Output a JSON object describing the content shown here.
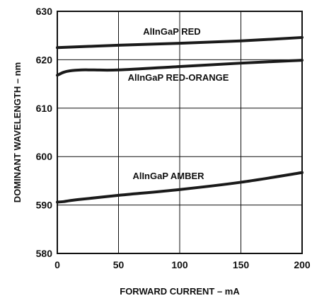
{
  "chart_data": {
    "type": "line",
    "title": "",
    "xlabel": "FORWARD CURRENT – mA",
    "ylabel": "DOMINANT WAVELENGTH – nm",
    "xlim": [
      0,
      200
    ],
    "ylim": [
      580,
      630
    ],
    "x_ticks": [
      0,
      50,
      100,
      150,
      200
    ],
    "y_ticks": [
      580,
      590,
      600,
      610,
      620,
      630
    ],
    "x_tick_labels": [
      "0",
      "50",
      "100",
      "150",
      "200"
    ],
    "y_tick_labels": [
      "580",
      "590",
      "600",
      "610",
      "620",
      "630"
    ],
    "grid": true,
    "legend": "none (series labeled inline)",
    "series": [
      {
        "name": "AlInGaP RED",
        "x": [
          0,
          50,
          100,
          150,
          200
        ],
        "y": [
          622.5,
          623.0,
          623.4,
          623.9,
          624.6
        ]
      },
      {
        "name": "AlInGaP RED-ORANGE",
        "x": [
          0,
          5,
          10,
          20,
          30,
          50,
          100,
          150,
          200
        ],
        "y": [
          616.8,
          617.4,
          617.7,
          617.9,
          617.9,
          617.9,
          618.6,
          619.3,
          619.9
        ]
      },
      {
        "name": "AlInGaP AMBER",
        "x": [
          0,
          5,
          10,
          20,
          50,
          100,
          150,
          200
        ],
        "y": [
          590.6,
          590.7,
          590.9,
          591.2,
          592.0,
          593.2,
          594.7,
          596.7
        ]
      }
    ],
    "line_color": "#1a1a1a"
  }
}
